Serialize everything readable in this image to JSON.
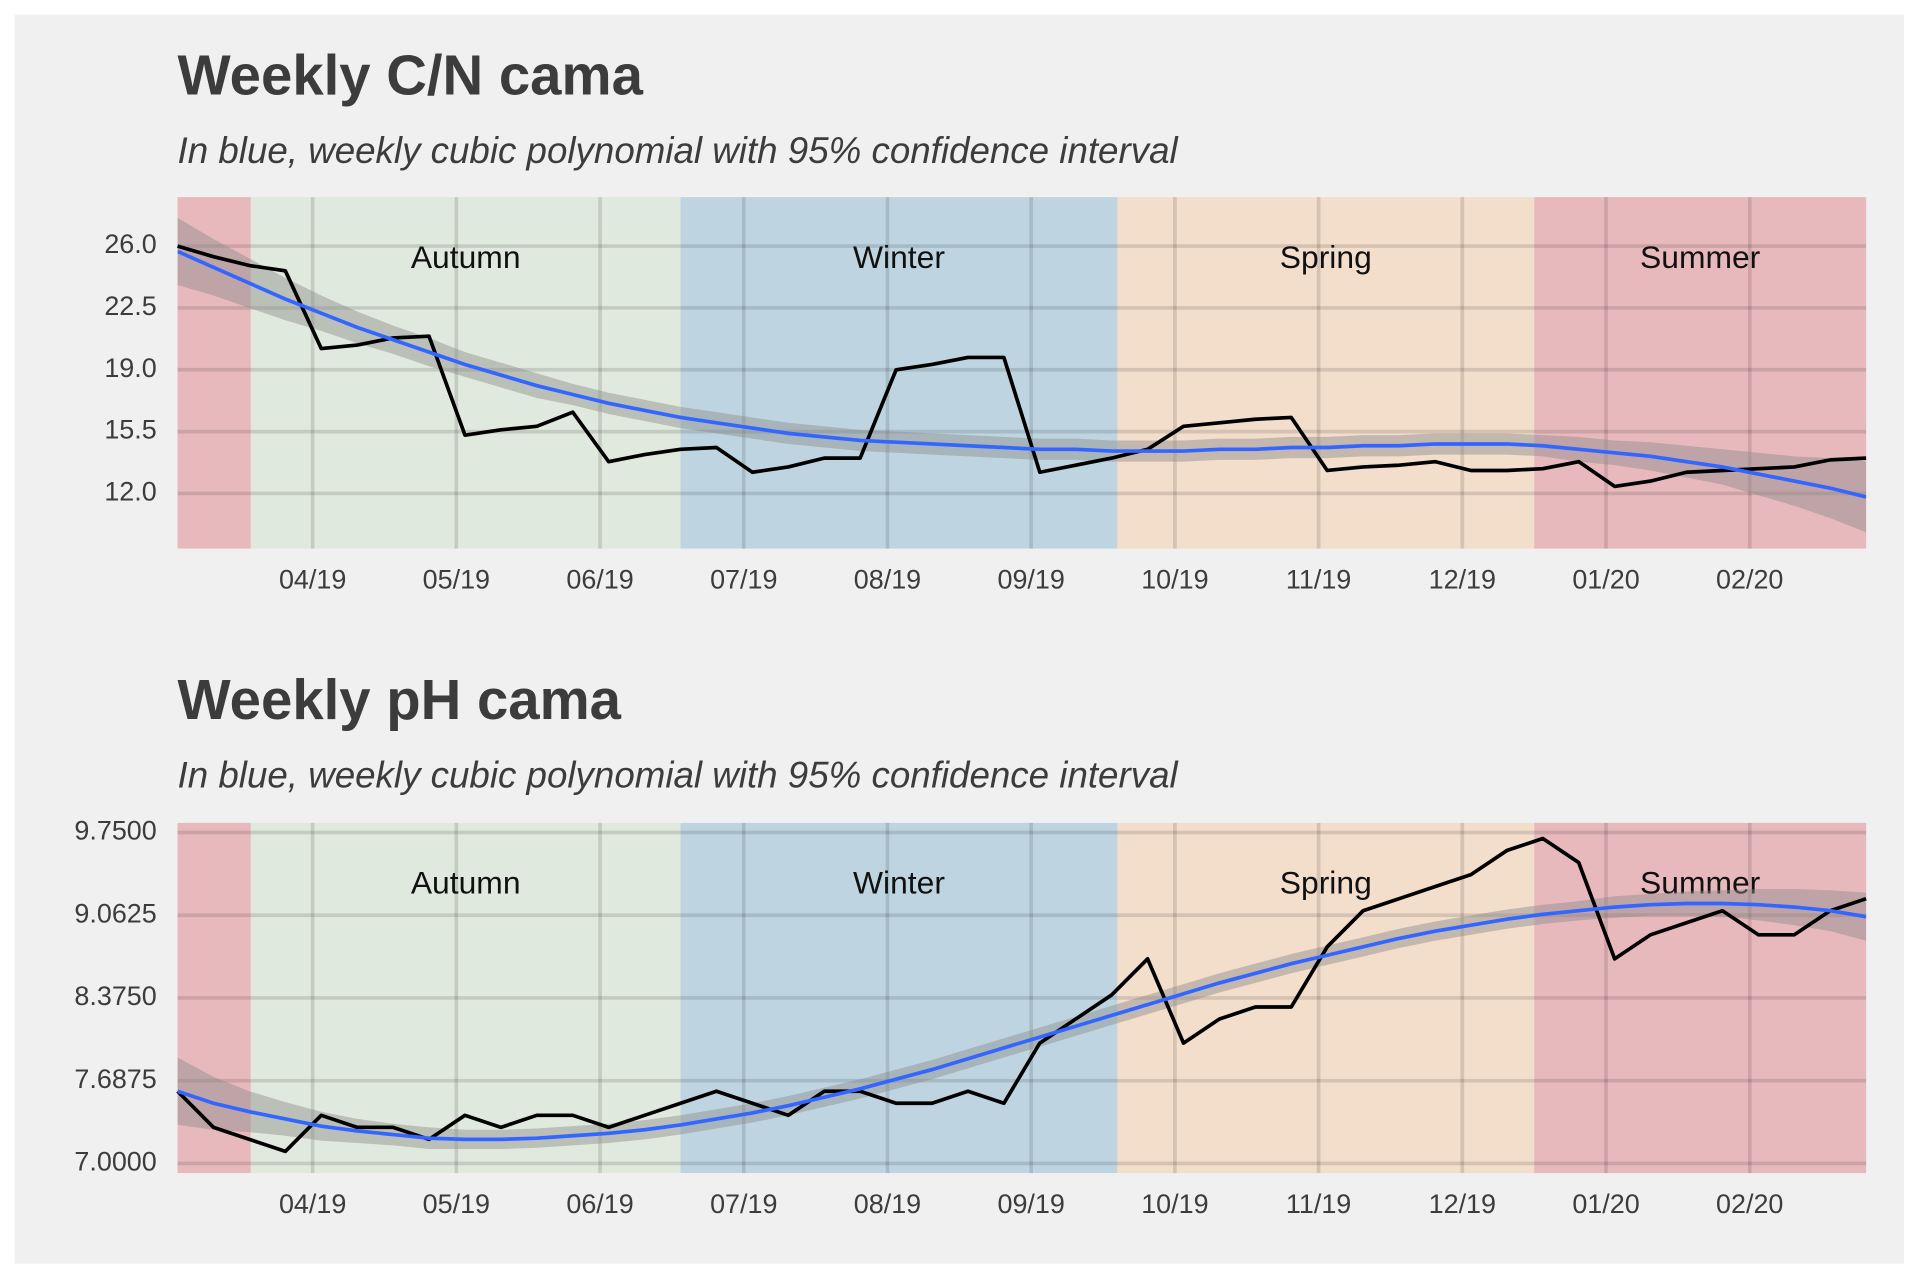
{
  "chart_data": [
    {
      "type": "line",
      "title": "Weekly C/N cama",
      "subtitle": "In blue, weekly cubic polynomial with 95% confidence interval",
      "x": [
        3.06,
        3.31,
        3.56,
        3.81,
        4.06,
        4.31,
        4.56,
        4.81,
        5.06,
        5.31,
        5.56,
        5.81,
        6.06,
        6.31,
        6.56,
        6.81,
        7.06,
        7.31,
        7.56,
        7.81,
        8.06,
        8.31,
        8.56,
        8.81,
        9.06,
        9.31,
        9.56,
        9.81,
        10.06,
        10.31,
        10.56,
        10.81,
        11.06,
        11.31,
        11.56,
        11.81,
        12.06,
        12.31,
        12.56,
        12.81,
        13.06,
        13.31,
        13.56,
        13.81,
        14.06,
        14.31,
        14.56,
        14.81
      ],
      "series": [
        {
          "color": "#000000",
          "values": [
            26.0,
            25.4,
            24.9,
            24.6,
            20.2,
            20.4,
            20.8,
            20.9,
            15.3,
            15.6,
            15.8,
            16.6,
            13.8,
            14.2,
            14.5,
            14.6,
            13.2,
            13.5,
            14.0,
            14.0,
            19.0,
            19.3,
            19.7,
            19.7,
            13.2,
            13.6,
            14.0,
            14.5,
            15.8,
            16.0,
            16.2,
            16.3,
            13.3,
            13.5,
            13.6,
            13.8,
            13.3,
            13.3,
            13.4,
            13.8,
            12.4,
            12.7,
            13.2,
            13.3,
            13.4,
            13.5,
            13.9,
            14.0
          ]
        }
      ],
      "fit": {
        "color": "#3366ff",
        "values": [
          25.7,
          24.8,
          23.9,
          23.0,
          22.2,
          21.4,
          20.7,
          20.0,
          19.3,
          18.7,
          18.1,
          17.6,
          17.1,
          16.7,
          16.3,
          16.0,
          15.7,
          15.4,
          15.2,
          15.0,
          14.9,
          14.8,
          14.7,
          14.6,
          14.5,
          14.5,
          14.4,
          14.4,
          14.4,
          14.5,
          14.5,
          14.6,
          14.6,
          14.7,
          14.7,
          14.8,
          14.8,
          14.8,
          14.7,
          14.5,
          14.3,
          14.1,
          13.8,
          13.5,
          13.1,
          12.7,
          12.3,
          11.8
        ],
        "ci": [
          1.9,
          1.6,
          1.4,
          1.2,
          1.0,
          0.9,
          0.8,
          0.8,
          0.7,
          0.7,
          0.7,
          0.6,
          0.6,
          0.6,
          0.6,
          0.6,
          0.6,
          0.6,
          0.6,
          0.6,
          0.6,
          0.6,
          0.6,
          0.6,
          0.6,
          0.6,
          0.6,
          0.6,
          0.6,
          0.6,
          0.6,
          0.6,
          0.6,
          0.6,
          0.6,
          0.6,
          0.6,
          0.6,
          0.6,
          0.7,
          0.7,
          0.8,
          0.9,
          1.0,
          1.2,
          1.4,
          1.7,
          2.0
        ]
      },
      "seasons": [
        {
          "name": null,
          "start": 3.06,
          "end": 3.57,
          "color": "#e8b9bc"
        },
        {
          "name": "Autumn",
          "start": 3.57,
          "end": 6.56,
          "color": "#e0e9dd"
        },
        {
          "name": "Winter",
          "start": 6.56,
          "end": 9.6,
          "color": "#bed5e1"
        },
        {
          "name": "Spring",
          "start": 9.6,
          "end": 12.5,
          "color": "#f3ddcb"
        },
        {
          "name": "Summer",
          "start": 12.5,
          "end": 14.81,
          "color": "#e8b9bc"
        }
      ],
      "xlim": [
        3.06,
        14.81
      ],
      "xticks": [
        {
          "value": 4,
          "label": "04/19"
        },
        {
          "value": 5,
          "label": "05/19"
        },
        {
          "value": 6,
          "label": "06/19"
        },
        {
          "value": 7,
          "label": "07/19"
        },
        {
          "value": 8,
          "label": "08/19"
        },
        {
          "value": 9,
          "label": "09/19"
        },
        {
          "value": 10,
          "label": "10/19"
        },
        {
          "value": 11,
          "label": "11/19"
        },
        {
          "value": 12,
          "label": "12/19"
        },
        {
          "value": 13,
          "label": "01/20"
        },
        {
          "value": 14,
          "label": "02/20"
        }
      ],
      "ylim": [
        8.88,
        28.77
      ],
      "yticks": [
        {
          "value": 12,
          "label": "12.0"
        },
        15.5,
        {
          "value": 19,
          "label": "19.0"
        },
        22.5,
        {
          "value": 26,
          "label": "26.0"
        }
      ],
      "grid": true
    },
    {
      "type": "line",
      "title": "Weekly pH cama",
      "subtitle": "In blue, weekly cubic polynomial with 95% confidence interval",
      "x": [
        3.06,
        3.31,
        3.56,
        3.81,
        4.06,
        4.31,
        4.56,
        4.81,
        5.06,
        5.31,
        5.56,
        5.81,
        6.06,
        6.31,
        6.56,
        6.81,
        7.06,
        7.31,
        7.56,
        7.81,
        8.06,
        8.31,
        8.56,
        8.81,
        9.06,
        9.31,
        9.56,
        9.81,
        10.06,
        10.31,
        10.56,
        10.81,
        11.06,
        11.31,
        11.56,
        11.81,
        12.06,
        12.31,
        12.56,
        12.81,
        13.06,
        13.31,
        13.56,
        13.81,
        14.06,
        14.31,
        14.56,
        14.81
      ],
      "series": [
        {
          "color": "#000000",
          "values": [
            7.6,
            7.3,
            7.2,
            7.1,
            7.4,
            7.3,
            7.3,
            7.2,
            7.4,
            7.3,
            7.4,
            7.4,
            7.3,
            7.4,
            7.5,
            7.6,
            7.5,
            7.4,
            7.6,
            7.6,
            7.5,
            7.5,
            7.6,
            7.5,
            8.0,
            8.2,
            8.4,
            8.7,
            8.0,
            8.2,
            8.3,
            8.3,
            8.8,
            9.1,
            9.2,
            9.3,
            9.4,
            9.6,
            9.7,
            9.5,
            8.7,
            8.9,
            9.0,
            9.1,
            8.9,
            8.9,
            9.1,
            9.2
          ]
        }
      ],
      "fit": {
        "color": "#3366ff",
        "values": [
          7.6,
          7.5,
          7.43,
          7.37,
          7.31,
          7.27,
          7.24,
          7.21,
          7.2,
          7.2,
          7.21,
          7.23,
          7.25,
          7.28,
          7.32,
          7.37,
          7.42,
          7.48,
          7.55,
          7.62,
          7.7,
          7.78,
          7.87,
          7.96,
          8.05,
          8.14,
          8.23,
          8.32,
          8.41,
          8.5,
          8.58,
          8.66,
          8.73,
          8.8,
          8.87,
          8.93,
          8.98,
          9.03,
          9.07,
          9.1,
          9.13,
          9.15,
          9.16,
          9.16,
          9.15,
          9.13,
          9.1,
          9.05
        ],
        "ci": [
          0.28,
          0.22,
          0.17,
          0.14,
          0.12,
          0.1,
          0.09,
          0.09,
          0.08,
          0.08,
          0.08,
          0.08,
          0.08,
          0.08,
          0.08,
          0.08,
          0.08,
          0.08,
          0.08,
          0.08,
          0.08,
          0.08,
          0.08,
          0.08,
          0.08,
          0.08,
          0.08,
          0.08,
          0.08,
          0.08,
          0.08,
          0.08,
          0.08,
          0.08,
          0.08,
          0.08,
          0.08,
          0.08,
          0.08,
          0.08,
          0.09,
          0.09,
          0.1,
          0.11,
          0.13,
          0.15,
          0.17,
          0.2
        ]
      },
      "seasons": [
        {
          "name": null,
          "start": 3.06,
          "end": 3.57,
          "color": "#e8b9bc"
        },
        {
          "name": "Autumn",
          "start": 3.57,
          "end": 6.56,
          "color": "#e0e9dd"
        },
        {
          "name": "Winter",
          "start": 6.56,
          "end": 9.6,
          "color": "#bed5e1"
        },
        {
          "name": "Spring",
          "start": 9.6,
          "end": 12.5,
          "color": "#f3ddcb"
        },
        {
          "name": "Summer",
          "start": 12.5,
          "end": 14.81,
          "color": "#e8b9bc"
        }
      ],
      "xlim": [
        3.06,
        14.81
      ],
      "xticks": [
        {
          "value": 4,
          "label": "04/19"
        },
        {
          "value": 5,
          "label": "05/19"
        },
        {
          "value": 6,
          "label": "06/19"
        },
        {
          "value": 7,
          "label": "07/19"
        },
        {
          "value": 8,
          "label": "08/19"
        },
        {
          "value": 9,
          "label": "09/19"
        },
        {
          "value": 10,
          "label": "10/19"
        },
        {
          "value": 11,
          "label": "11/19"
        },
        {
          "value": 12,
          "label": "12/19"
        },
        {
          "value": 13,
          "label": "01/20"
        },
        {
          "value": 14,
          "label": "02/20"
        }
      ],
      "ylim": [
        6.92,
        9.83
      ],
      "yticks": [
        {
          "value": 7,
          "label": "7.0000"
        },
        {
          "value": 7.6875,
          "label": "7.6875"
        },
        {
          "value": 8.375,
          "label": "8.3750"
        },
        {
          "value": 9.0625,
          "label": "9.0625"
        },
        {
          "value": 9.75,
          "label": "9.7500"
        }
      ],
      "grid": true
    }
  ]
}
